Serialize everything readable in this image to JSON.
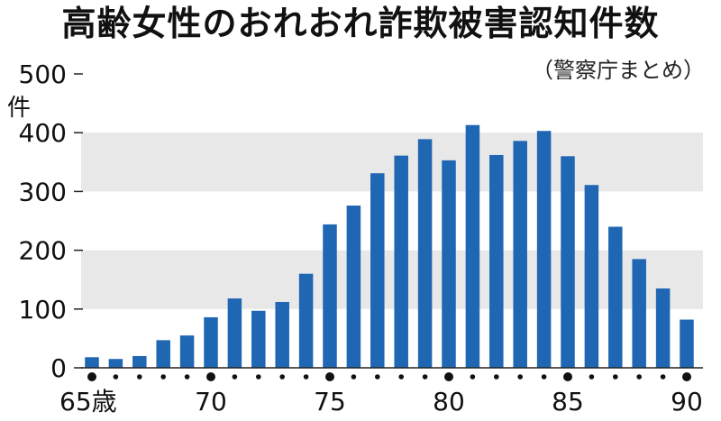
{
  "title": "高齢女性のおれおれ詐欺被害認知件数",
  "source": "（警察庁まとめ）",
  "chart_data": {
    "type": "bar",
    "title": "高齢女性のおれおれ詐欺被害認知件数",
    "y_unit": "件",
    "ylim": [
      0,
      500
    ],
    "y_ticks": [
      0,
      100,
      200,
      300,
      400,
      500
    ],
    "grid": "alternating shaded bands",
    "x_start": 65,
    "x_tick_labels": [
      {
        "age": 65,
        "label": "65歳"
      },
      {
        "age": 70,
        "label": "70"
      },
      {
        "age": 75,
        "label": "75"
      },
      {
        "age": 80,
        "label": "80"
      },
      {
        "age": 85,
        "label": "85"
      },
      {
        "age": 90,
        "label": "90"
      }
    ],
    "values": [
      18,
      15,
      20,
      47,
      55,
      86,
      118,
      97,
      112,
      160,
      244,
      276,
      331,
      361,
      389,
      353,
      413,
      362,
      386,
      403,
      360,
      311,
      240,
      185,
      135,
      82
    ],
    "bar_color": "#1f66b3",
    "band_color": "#e8e8e8"
  }
}
